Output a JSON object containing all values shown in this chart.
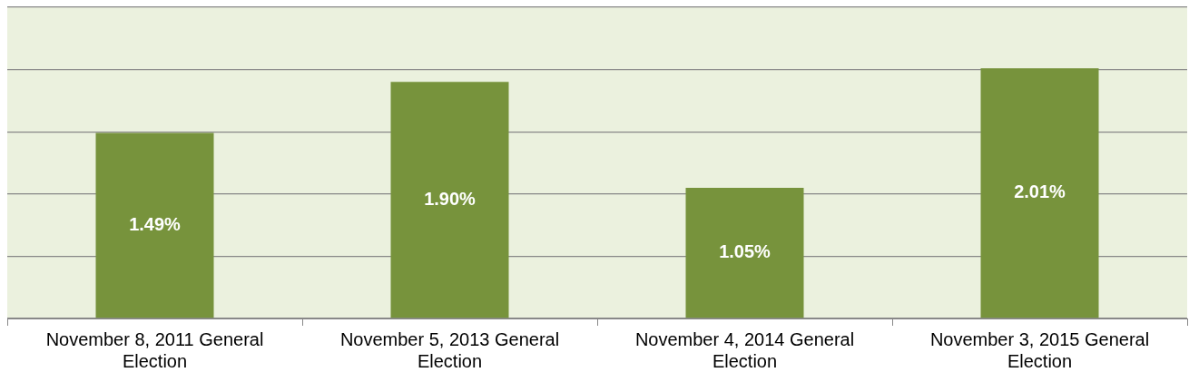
{
  "chart_data": {
    "type": "bar",
    "categories": [
      "November 8, 2011 General Election",
      "November 5, 2013 General Election",
      "November 4, 2014 General Election",
      "November 3, 2015 General Election"
    ],
    "values": [
      1.49,
      1.9,
      1.05,
      2.01
    ],
    "value_labels": [
      "1.49%",
      "1.90%",
      "1.05%",
      "2.01%"
    ],
    "color": "#77933c",
    "ylim": [
      0,
      2.5
    ],
    "yticks": [
      {
        "value": 0,
        "label": null
      },
      {
        "value": 0.5,
        "label": null
      },
      {
        "value": 1,
        "label": null
      },
      {
        "value": 1.5,
        "label": null
      },
      {
        "value": 2,
        "label": null
      },
      {
        "value": 2.5,
        "label": null
      }
    ],
    "tick_labels": "x",
    "grid": "y"
  }
}
